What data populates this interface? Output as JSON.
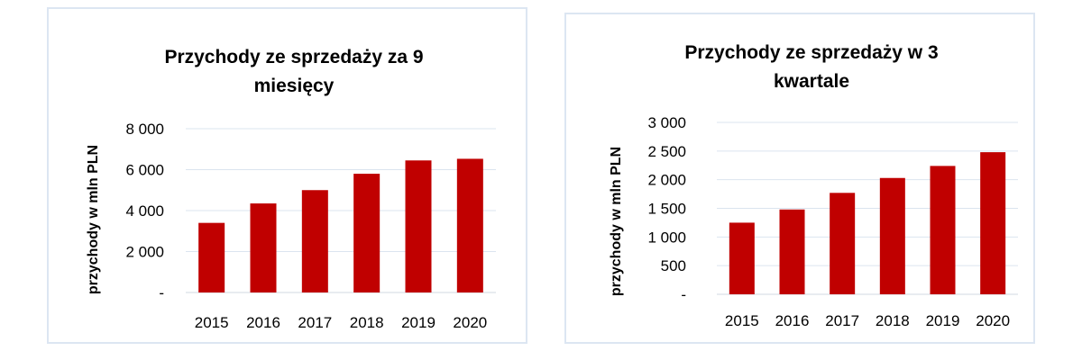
{
  "chart_data": [
    {
      "type": "bar",
      "title_lines": [
        "Przychody ze sprzedaży za 9",
        "miesięcy"
      ],
      "ylabel": "przychody w mln PLN",
      "xlabel": "",
      "categories": [
        "2015",
        "2016",
        "2017",
        "2018",
        "2019",
        "2020"
      ],
      "values": [
        3400,
        4350,
        5000,
        5800,
        6450,
        6530
      ],
      "ylim": [
        0,
        8000
      ],
      "yticks": [
        {
          "value": 0,
          "label": "-"
        },
        {
          "value": 2000,
          "label": "2 000"
        },
        {
          "value": 4000,
          "label": "4 000"
        },
        {
          "value": 6000,
          "label": "6 000"
        },
        {
          "value": 8000,
          "label": "8 000"
        }
      ],
      "grid": true,
      "legend": "none",
      "bar_color": "#c00000"
    },
    {
      "type": "bar",
      "title_lines": [
        "Przychody ze sprzedaży w 3",
        "kwartale"
      ],
      "ylabel": "przychody w mln PLN",
      "xlabel": "",
      "categories": [
        "2015",
        "2016",
        "2017",
        "2018",
        "2019",
        "2020"
      ],
      "values": [
        1250,
        1480,
        1770,
        2030,
        2240,
        2480
      ],
      "ylim": [
        0,
        3000
      ],
      "yticks": [
        {
          "value": 0,
          "label": "-"
        },
        {
          "value": 500,
          "label": "500"
        },
        {
          "value": 1000,
          "label": "1 000"
        },
        {
          "value": 1500,
          "label": "1 500"
        },
        {
          "value": 2000,
          "label": "2 000"
        },
        {
          "value": 2500,
          "label": "2 500"
        },
        {
          "value": 3000,
          "label": "3 000"
        }
      ],
      "grid": true,
      "legend": "none",
      "bar_color": "#c00000"
    }
  ]
}
